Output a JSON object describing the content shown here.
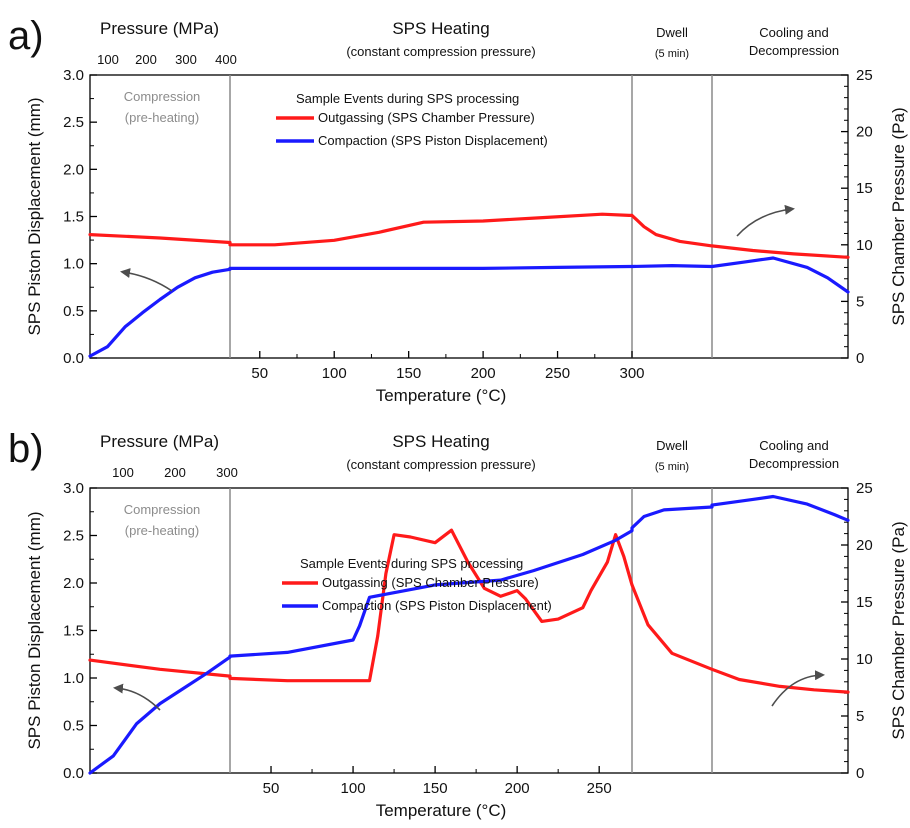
{
  "colors": {
    "outgassing": "#ff1a1a",
    "compaction": "#1a1aff",
    "divider": "#8a8a8a",
    "arrow": "#4d4d4d"
  },
  "chart_data": [
    {
      "type": "line",
      "panel_label": "a)",
      "sections": {
        "pressure_title": "Pressure (MPa)",
        "pressure_ticks": [
          "100",
          "200",
          "300",
          "400"
        ],
        "heating_title": "SPS Heating",
        "heating_sub": "(constant compression pressure)",
        "dwell_title": "Dwell",
        "dwell_sub": "(5 min)",
        "cooling_line1": "Cooling and",
        "cooling_line2": "Decompression",
        "compression_line1": "Compression",
        "compression_line2": "(pre-heating)"
      },
      "xlabel": "Temperature (°C)",
      "x_ticks": [
        "50",
        "100",
        "150",
        "200",
        "250",
        "300"
      ],
      "ylabel_left": "SPS Piston Displacement (mm)",
      "ylabel_right": "SPS Chamber Pressure (Pa)",
      "ylim_left": [
        0,
        3
      ],
      "ylim_right": [
        0,
        25
      ],
      "y_ticks_left": [
        "0.0",
        "0.5",
        "1.0",
        "1.5",
        "2.0",
        "2.5",
        "3.0"
      ],
      "y_ticks_right": [
        "0",
        "5",
        "10",
        "15",
        "20",
        "25"
      ],
      "legend": {
        "title": "Sample Events during SPS processing",
        "placement": "top-center",
        "entries": [
          "Outgassing  (SPS Chamber Pressure)",
          "Compaction (SPS Piston Displacement)"
        ]
      },
      "segments": {
        "compression": {
          "axis": "pressure",
          "x_range": [
            0,
            400
          ]
        },
        "heating": {
          "axis": "temperature",
          "x_range": [
            30,
            300
          ]
        },
        "dwell": {
          "axis": "none"
        },
        "cooling": {
          "axis": "none"
        }
      },
      "series": [
        {
          "name": "Outgassing  (SPS Chamber Pressure)",
          "axis": "right",
          "color": "outgassing",
          "compression": [
            [
              0,
              10.9
            ],
            [
              200,
              10.6
            ],
            [
              400,
              10.2
            ]
          ],
          "heating": [
            [
              30,
              10.0
            ],
            [
              60,
              10.0
            ],
            [
              100,
              10.4
            ],
            [
              130,
              11.1
            ],
            [
              160,
              12.0
            ],
            [
              200,
              12.1
            ],
            [
              240,
              12.4
            ],
            [
              280,
              12.7
            ],
            [
              298,
              12.6
            ]
          ],
          "dwell": [
            [
              0,
              12.6
            ],
            [
              0.15,
              11.6
            ],
            [
              0.3,
              10.9
            ],
            [
              0.6,
              10.3
            ],
            [
              1,
              9.9
            ]
          ],
          "cooling": [
            [
              0,
              9.9
            ],
            [
              0.3,
              9.5
            ],
            [
              0.6,
              9.2
            ],
            [
              1,
              8.9
            ]
          ]
        },
        {
          "name": "Compaction (SPS Piston Displacement)",
          "axis": "left",
          "color": "compaction",
          "compression": [
            [
              0,
              0.02
            ],
            [
              50,
              0.12
            ],
            [
              100,
              0.33
            ],
            [
              150,
              0.48
            ],
            [
              200,
              0.62
            ],
            [
              250,
              0.75
            ],
            [
              300,
              0.85
            ],
            [
              350,
              0.91
            ],
            [
              400,
              0.94
            ]
          ],
          "heating": [
            [
              30,
              0.95
            ],
            [
              120,
              0.95
            ],
            [
              200,
              0.95
            ],
            [
              250,
              0.96
            ],
            [
              298,
              0.97
            ]
          ],
          "dwell": [
            [
              0,
              0.97
            ],
            [
              0.5,
              0.98
            ],
            [
              1,
              0.97
            ]
          ],
          "cooling": [
            [
              0,
              0.97
            ],
            [
              0.25,
              1.02
            ],
            [
              0.45,
              1.06
            ],
            [
              0.7,
              0.96
            ],
            [
              0.85,
              0.85
            ],
            [
              1,
              0.7
            ]
          ]
        }
      ]
    },
    {
      "type": "line",
      "panel_label": "b)",
      "sections": {
        "pressure_title": "Pressure (MPa)",
        "pressure_ticks": [
          "100",
          "200",
          "300"
        ],
        "heating_title": "SPS Heating",
        "heating_sub": "(constant compression pressure)",
        "dwell_title": "Dwell",
        "dwell_sub": "(5 min)",
        "cooling_line1": "Cooling and",
        "cooling_line2": "Decompression",
        "compression_line1": "Compression",
        "compression_line2": "(pre-heating)"
      },
      "xlabel": "Temperature (°C)",
      "x_ticks": [
        "50",
        "100",
        "150",
        "200",
        "250"
      ],
      "ylabel_left": "SPS Piston Displacement (mm)",
      "ylabel_right": "SPS Chamber Pressure (Pa)",
      "ylim_left": [
        0,
        3
      ],
      "ylim_right": [
        0,
        25
      ],
      "y_ticks_left": [
        "0.0",
        "0.5",
        "1.0",
        "1.5",
        "2.0",
        "2.5",
        "3.0"
      ],
      "y_ticks_right": [
        "0",
        "5",
        "10",
        "15",
        "20",
        "25"
      ],
      "legend": {
        "title": "Sample Events during SPS processing",
        "placement": "bottom-center",
        "entries": [
          "Outgassing  (SPS Chamber Pressure)",
          "Compaction (SPS Piston Displacement)"
        ]
      },
      "segments": {
        "compression": {
          "axis": "pressure",
          "x_range": [
            0,
            300
          ]
        },
        "heating": {
          "axis": "temperature",
          "x_range": [
            25,
            270
          ]
        },
        "dwell": {
          "axis": "none"
        },
        "cooling": {
          "axis": "none"
        }
      },
      "series": [
        {
          "name": "Outgassing  (SPS Chamber Pressure)",
          "axis": "right",
          "color": "outgassing",
          "compression": [
            [
              0,
              9.9
            ],
            [
              150,
              9.1
            ],
            [
              300,
              8.5
            ]
          ],
          "heating": [
            [
              25,
              8.3
            ],
            [
              60,
              8.1
            ],
            [
              100,
              8.1
            ],
            [
              110,
              8.1
            ],
            [
              115,
              12.0
            ],
            [
              120,
              17.5
            ],
            [
              125,
              20.9
            ],
            [
              135,
              20.7
            ],
            [
              150,
              20.2
            ],
            [
              160,
              21.3
            ],
            [
              170,
              18.5
            ],
            [
              180,
              16.2
            ],
            [
              190,
              15.5
            ],
            [
              200,
              16.0
            ],
            [
              205,
              15.3
            ],
            [
              215,
              13.3
            ],
            [
              225,
              13.5
            ],
            [
              240,
              14.5
            ],
            [
              245,
              16.0
            ],
            [
              255,
              18.5
            ],
            [
              260,
              20.9
            ],
            [
              265,
              19.0
            ],
            [
              270,
              16.5
            ]
          ],
          "dwell": [
            [
              0,
              16.5
            ],
            [
              0.2,
              13.0
            ],
            [
              0.5,
              10.5
            ],
            [
              1,
              9.1
            ]
          ],
          "cooling": [
            [
              0,
              9.1
            ],
            [
              0.2,
              8.2
            ],
            [
              0.5,
              7.6
            ],
            [
              0.75,
              7.3
            ],
            [
              1,
              7.1
            ]
          ]
        },
        {
          "name": "Compaction (SPS Piston Displacement)",
          "axis": "left",
          "color": "compaction",
          "compression": [
            [
              0,
              0.0
            ],
            [
              50,
              0.18
            ],
            [
              100,
              0.52
            ],
            [
              150,
              0.73
            ],
            [
              200,
              0.89
            ],
            [
              250,
              1.05
            ],
            [
              300,
              1.22
            ]
          ],
          "heating": [
            [
              25,
              1.23
            ],
            [
              60,
              1.27
            ],
            [
              100,
              1.4
            ],
            [
              104,
              1.55
            ],
            [
              110,
              1.85
            ],
            [
              150,
              1.98
            ],
            [
              190,
              2.03
            ],
            [
              210,
              2.13
            ],
            [
              240,
              2.3
            ],
            [
              260,
              2.45
            ],
            [
              270,
              2.55
            ]
          ],
          "dwell": [
            [
              0,
              2.58
            ],
            [
              0.15,
              2.7
            ],
            [
              0.4,
              2.77
            ],
            [
              1,
              2.8
            ]
          ],
          "cooling": [
            [
              0,
              2.82
            ],
            [
              0.3,
              2.88
            ],
            [
              0.45,
              2.91
            ],
            [
              0.7,
              2.83
            ],
            [
              0.9,
              2.72
            ],
            [
              1,
              2.66
            ]
          ]
        }
      ]
    }
  ]
}
